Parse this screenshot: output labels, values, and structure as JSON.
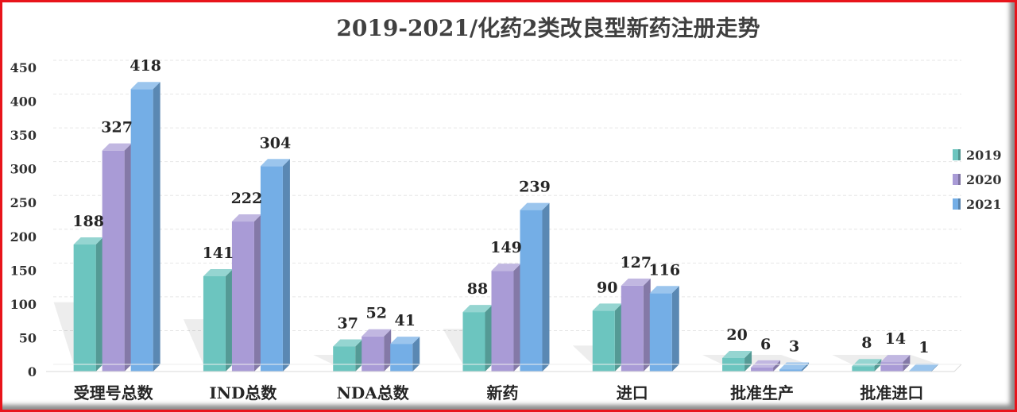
{
  "chart_data": {
    "type": "bar",
    "title": "2019-2021/化药2类改良型新药注册走势",
    "categories": [
      "受理号总数",
      "IND总数",
      "NDA总数",
      "新药",
      "进口",
      "批准生产",
      "批准进口"
    ],
    "series": [
      {
        "name": "2019",
        "values": [
          188,
          141,
          37,
          88,
          90,
          20,
          8
        ],
        "color": "#6cc5bf"
      },
      {
        "name": "2020",
        "values": [
          327,
          222,
          52,
          149,
          127,
          6,
          14
        ],
        "color": "#a99bd6"
      },
      {
        "name": "2021",
        "values": [
          418,
          304,
          41,
          239,
          116,
          3,
          1
        ],
        "color": "#74aee6"
      }
    ],
    "ylim": [
      0,
      450
    ],
    "yticks": [
      0,
      50,
      100,
      150,
      200,
      250,
      300,
      350,
      400,
      450
    ],
    "grid": true,
    "legend_position": "right",
    "style": "3d-clustered-column"
  }
}
